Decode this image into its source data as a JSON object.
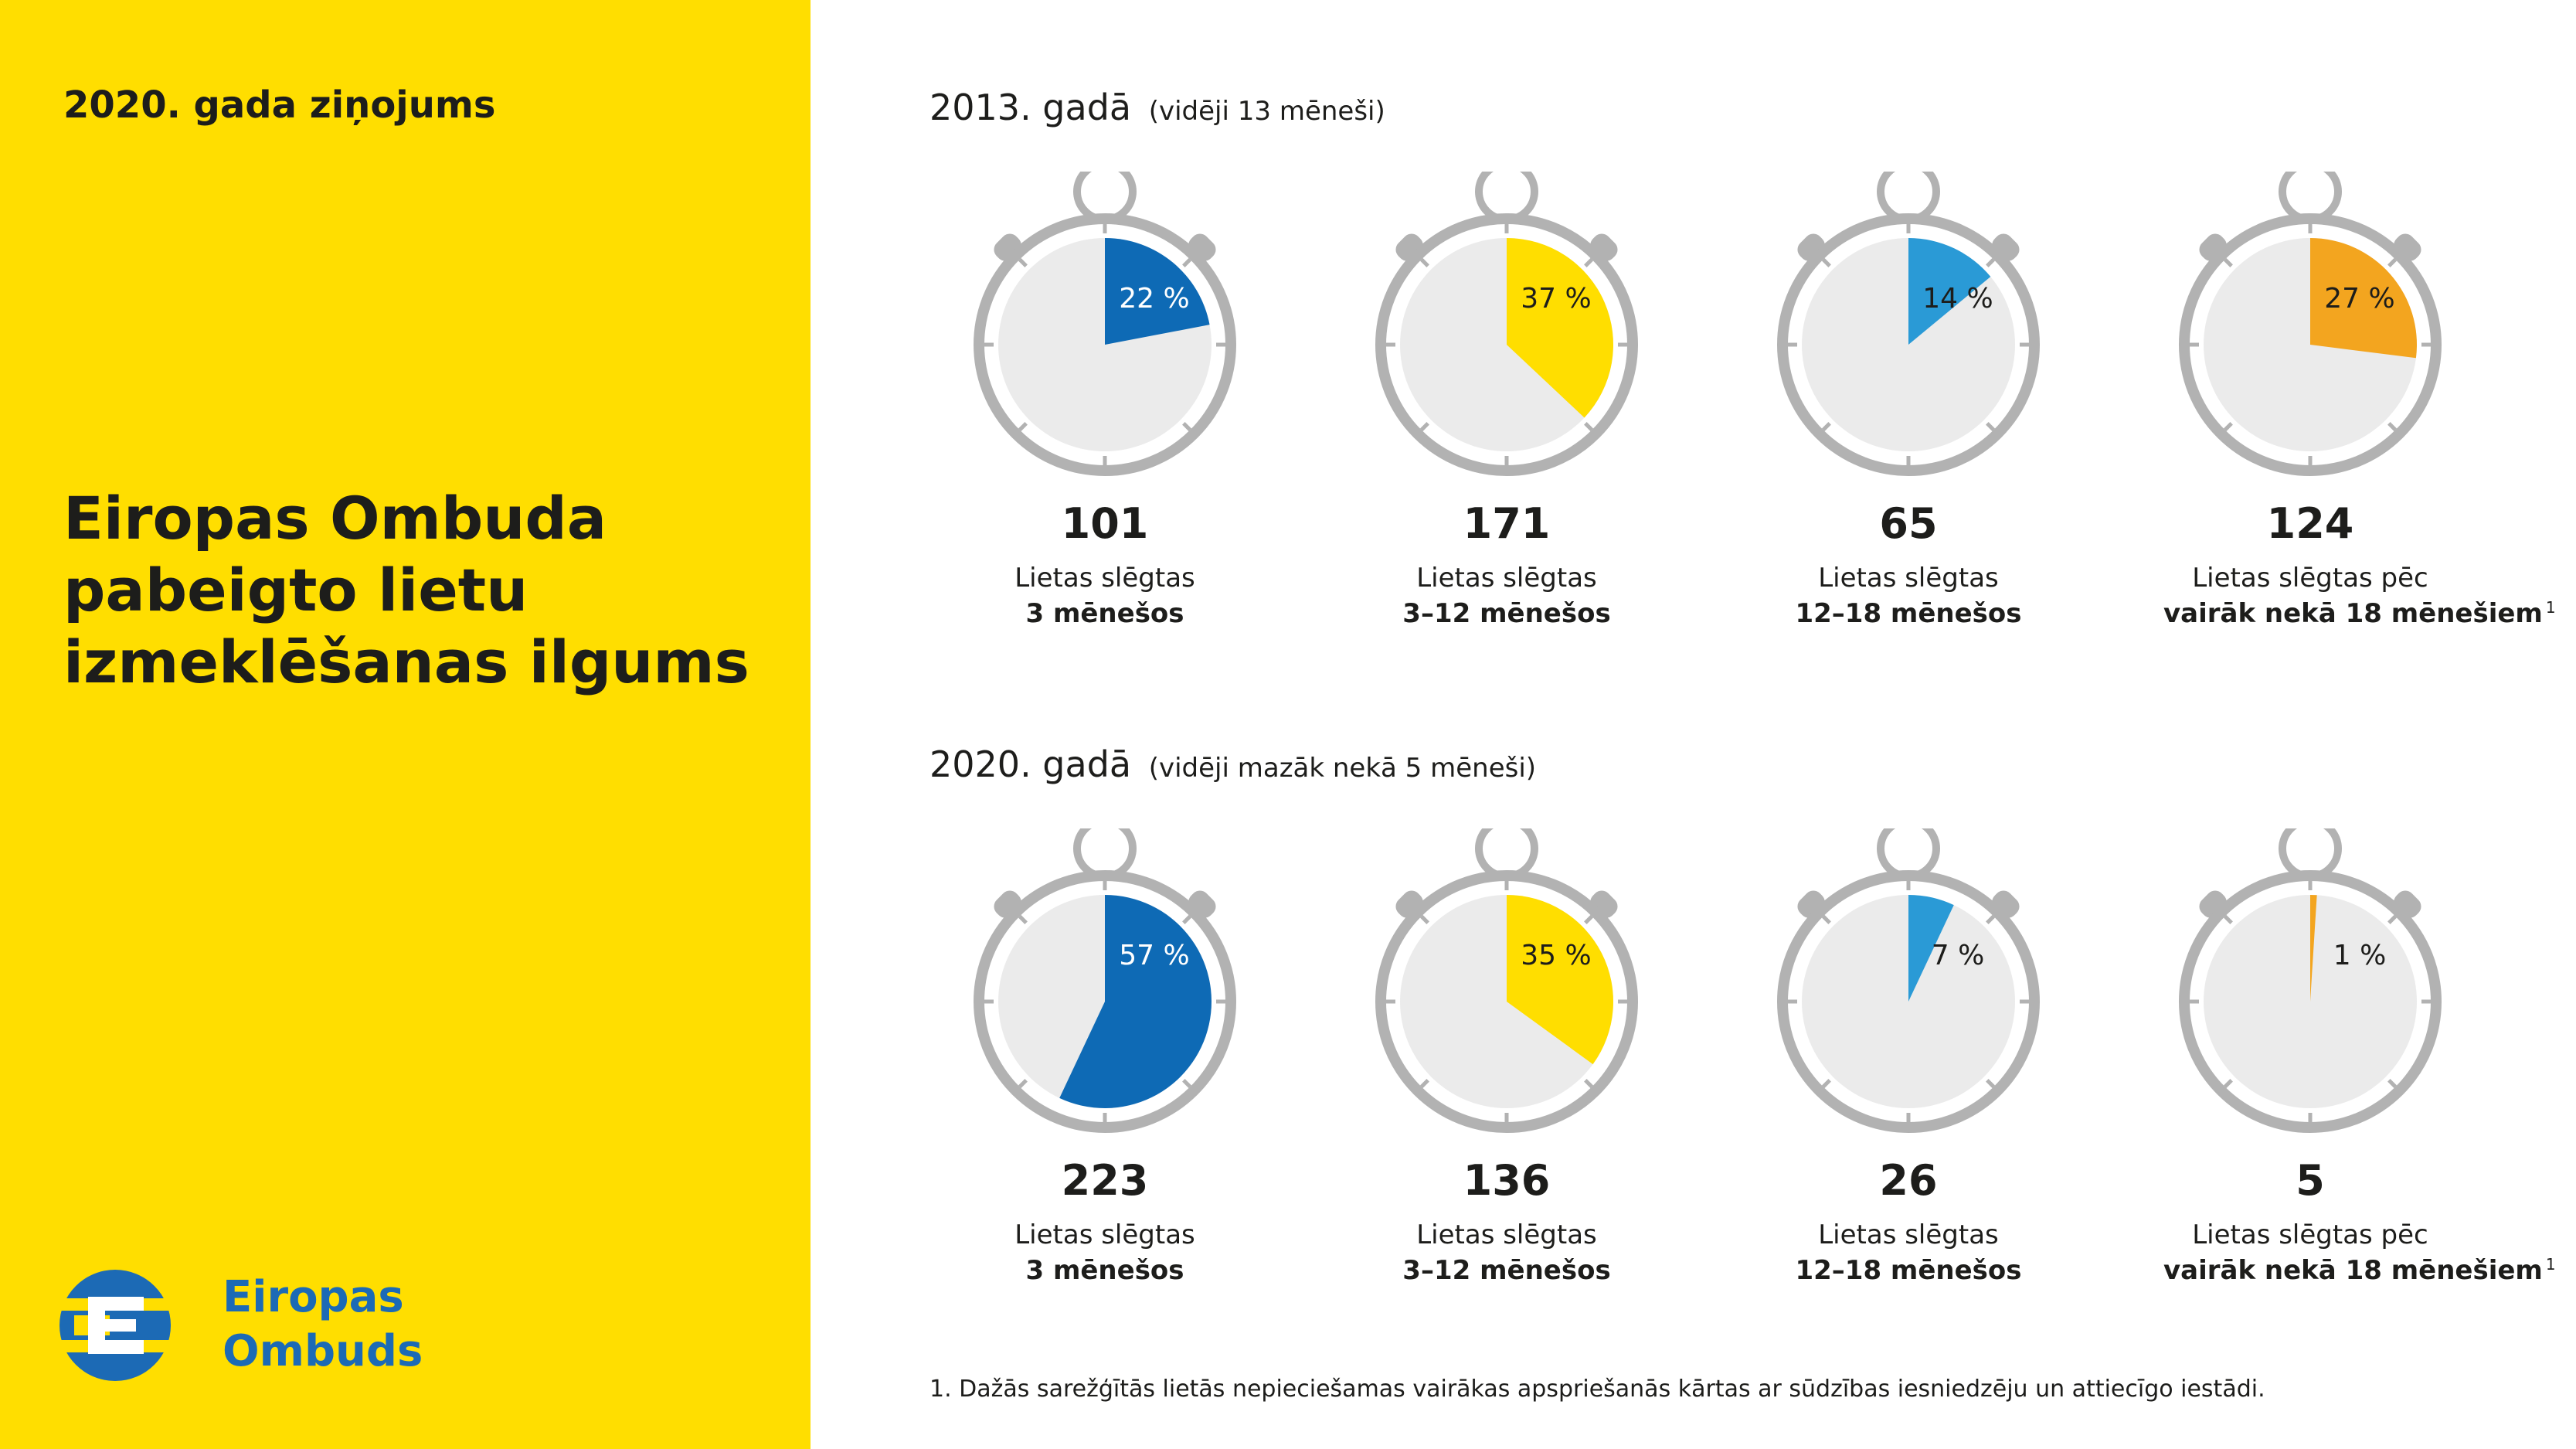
{
  "sidebar": {
    "report_label": "2020. gada ziņojums",
    "title_lines": [
      "Eiropas Ombuda",
      "pabeigto lietu",
      "izmeklēšanas ilgums"
    ],
    "logo_lines": [
      "Eiropas",
      "Ombuds"
    ]
  },
  "chart_data": [
    {
      "type": "pie",
      "title": "2013. gadā",
      "subtitle": "(vidēji 13 mēneši)",
      "categories": [
        "Lietas slēgtas 3 mēnešos",
        "Lietas slēgtas 3–12 mēnešos",
        "Lietas slēgtas 12–18 mēnešos",
        "Lietas slēgtas pēc vairāk nekā 18 mēnešiem"
      ],
      "percent": [
        22,
        37,
        14,
        27
      ],
      "percent_labels": [
        "22 %",
        "37 %",
        "14 %",
        "27 %"
      ],
      "counts": [
        "101",
        "171",
        "65",
        "124"
      ],
      "colors": [
        "#0e6ab5",
        "#ffde00",
        "#2a9ad6",
        "#f3a51f"
      ],
      "label_line1": [
        "Lietas slēgtas",
        "Lietas slēgtas",
        "Lietas slēgtas",
        "Lietas slēgtas pēc"
      ],
      "label_line2": [
        "3 mēnešos",
        "3–12 mēnešos",
        "12–18 mēnešos",
        "vairāk nekā 18 mēnešiem"
      ]
    },
    {
      "type": "pie",
      "title": "2020. gadā",
      "subtitle": "(vidēji mazāk nekā 5 mēneši)",
      "categories": [
        "Lietas slēgtas 3 mēnešos",
        "Lietas slēgtas 3–12 mēnešos",
        "Lietas slēgtas 12–18 mēnešos",
        "Lietas slēgtas pēc vairāk nekā 18 mēnešiem"
      ],
      "percent": [
        57,
        35,
        7,
        1
      ],
      "percent_labels": [
        "57 %",
        "35 %",
        "7 %",
        "1 %"
      ],
      "counts": [
        "223",
        "136",
        "26",
        "5"
      ],
      "colors": [
        "#0e6ab5",
        "#ffde00",
        "#2a9ad6",
        "#f3a51f"
      ],
      "label_line1": [
        "Lietas slēgtas",
        "Lietas slēgtas",
        "Lietas slēgtas",
        "Lietas slēgtas pēc"
      ],
      "label_line2": [
        "3 mēnešos",
        "3–12 mēnešos",
        "12–18 mēnešos",
        "vairāk nekā 18 mēnešiem"
      ]
    }
  ],
  "footnote_marker": "1",
  "footnote": "1. Dažās sarežģītās lietās nepieciešamas vairākas apspriešanās kārtas ar sūdzības iesniedzēju un attiecīgo iestādi."
}
